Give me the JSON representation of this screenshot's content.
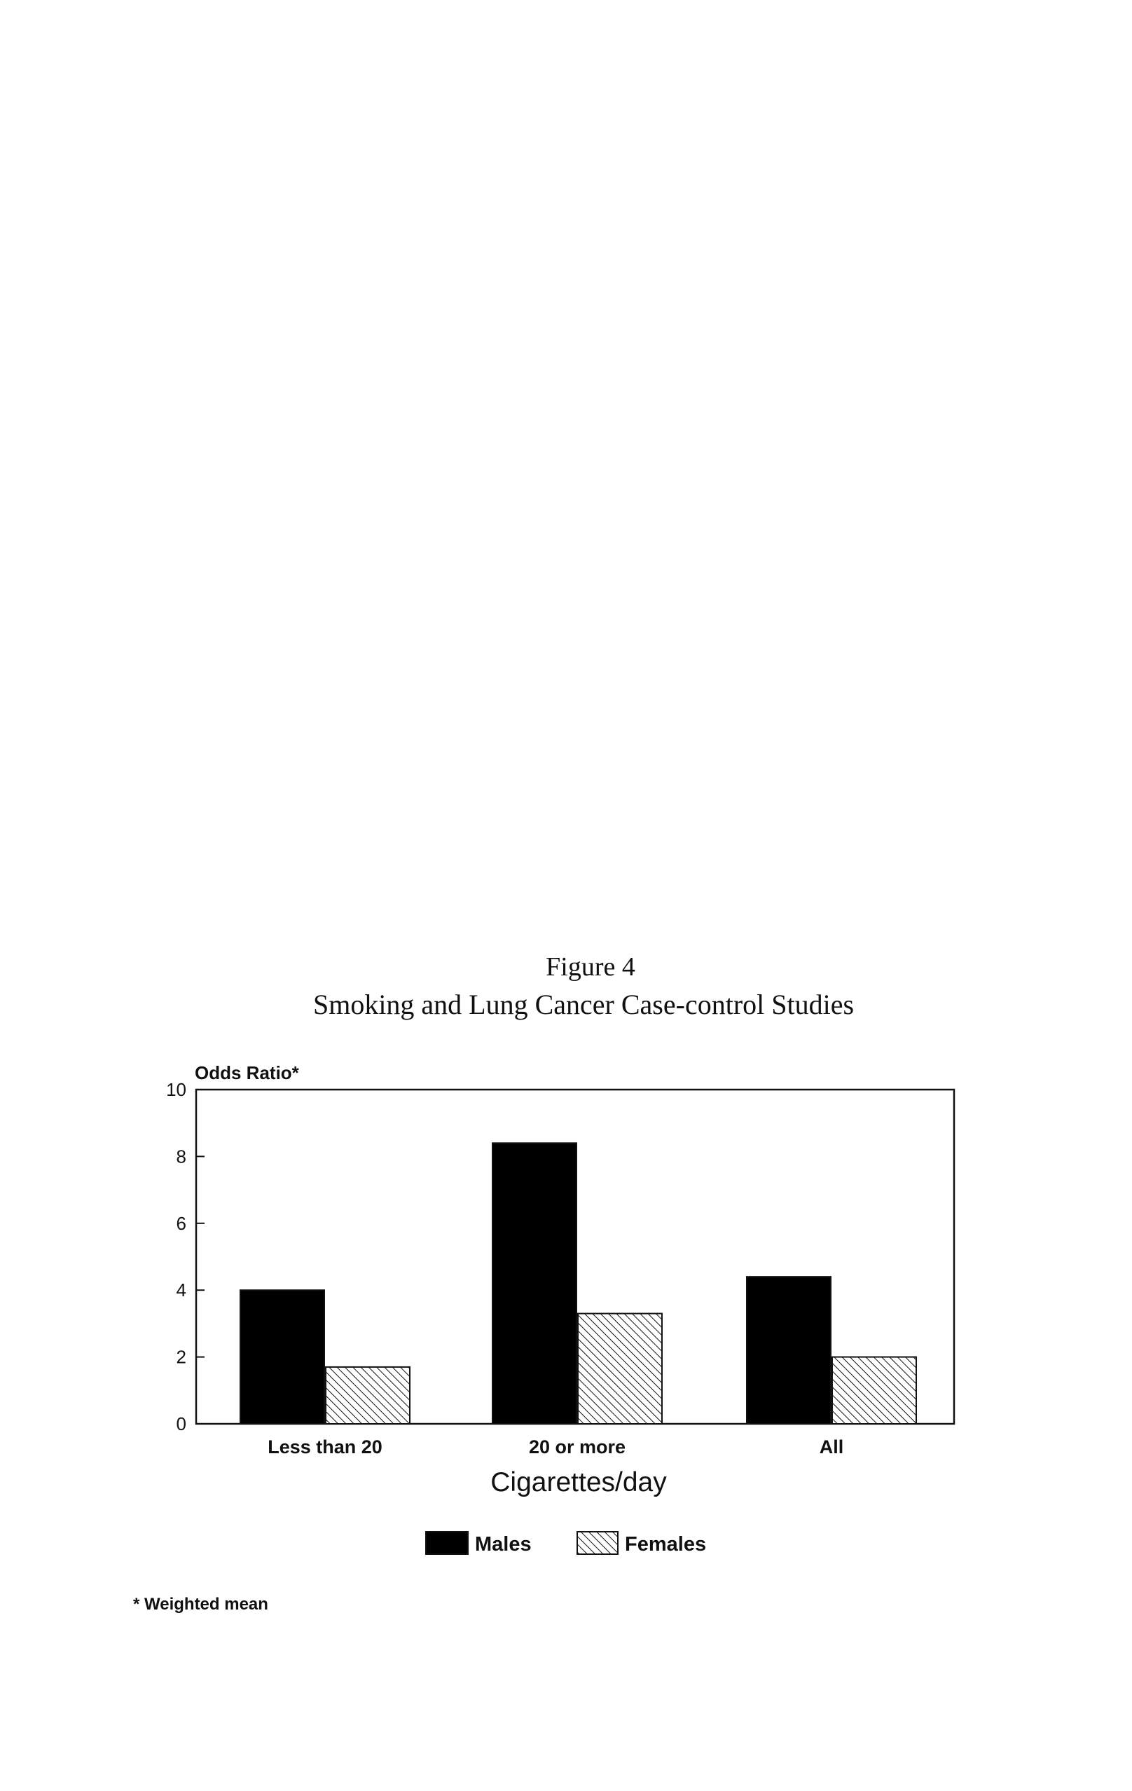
{
  "figure": {
    "number": "Figure 4",
    "caption": "Smoking and Lung Cancer Case-control Studies"
  },
  "chart_data": {
    "type": "bar",
    "title": "Figure 4 Smoking and Lung Cancer Case-control Studies",
    "ylabel": "Odds Ratio*",
    "xlabel": "Cigarettes/day",
    "categories": [
      "Less than 20",
      "20 or more",
      "All"
    ],
    "series": [
      {
        "name": "Males",
        "values": [
          4.0,
          8.4,
          4.4
        ],
        "color": "#000000",
        "pattern": "solid"
      },
      {
        "name": "Females",
        "values": [
          1.7,
          3.3,
          2.0
        ],
        "color": "#ffffff",
        "pattern": "diagonal-hatch"
      }
    ],
    "ylim": [
      0,
      10
    ],
    "yticks": [
      0,
      2,
      4,
      6,
      8,
      10
    ],
    "grid": false,
    "legend_position": "bottom-center",
    "footnote": "* Weighted mean"
  }
}
